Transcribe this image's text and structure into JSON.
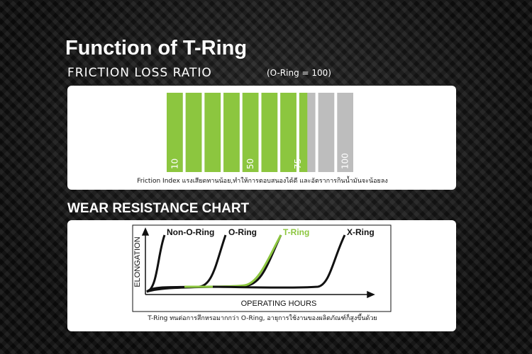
{
  "header": {
    "title": "Function of T-Ring"
  },
  "friction": {
    "title": "FRICTION LOSS RATIO",
    "note": "(O-Ring = 100)",
    "ticks": [
      10,
      50,
      75,
      100
    ],
    "value": 75,
    "caption": "Friction Index แรงเสียดทานน้อย,ทำให้การตอบสนองได้ดี และอัตราการกินน้ำมันจะน้อยลง"
  },
  "wear": {
    "title": "WEAR RESISTANCE CHART",
    "y_label": "ELONGATION",
    "x_label": "OPERATING HOURS",
    "curves": [
      "Non-O-Ring",
      "O-Ring",
      "T-Ring",
      "X-Ring"
    ],
    "caption": "T-Ring ทนต่อการสึกหรอมากกว่า O-Ring, อายุการใช้งานของผลิตภัณฑ์ก็สูงขึ้นด้วย"
  }
}
